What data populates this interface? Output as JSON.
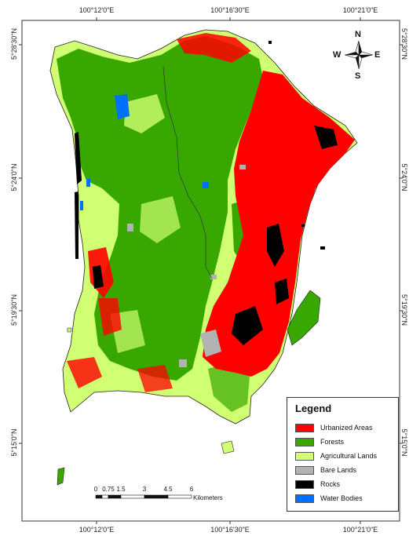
{
  "map": {
    "coords_top": [
      "100°12'0\"E",
      "100°16'30\"E",
      "100°21'0\"E"
    ],
    "coords_bottom": [
      "100°12'0\"E",
      "100°16'30\"E",
      "100°21'0\"E"
    ],
    "coords_left": [
      "5°28'30\"N",
      "5°24'0\"N",
      "5°19'30\"N",
      "5°15'0\"N"
    ],
    "coords_right": [
      "5°28'30\"N",
      "5°24'0\"N",
      "5°19'30\"N",
      "5°15'0\"N"
    ]
  },
  "compass": {
    "n": "N",
    "s": "S",
    "e": "E",
    "w": "W"
  },
  "legend": {
    "title": "Legend",
    "items": [
      {
        "label": "Urbanized Areas",
        "color": "#ff0000"
      },
      {
        "label": "Forests",
        "color": "#38a800"
      },
      {
        "label": "Agricultural Lands",
        "color": "#d1ff73"
      },
      {
        "label": "Bare Lands",
        "color": "#b2b2b2"
      },
      {
        "label": "Rocks",
        "color": "#000000"
      },
      {
        "label": "Water Bodies",
        "color": "#0070ff"
      }
    ]
  },
  "scale": {
    "ticks": [
      "0",
      "0.75",
      "1.5",
      "3",
      "4.5",
      "6"
    ],
    "unit": "Kilometers"
  }
}
